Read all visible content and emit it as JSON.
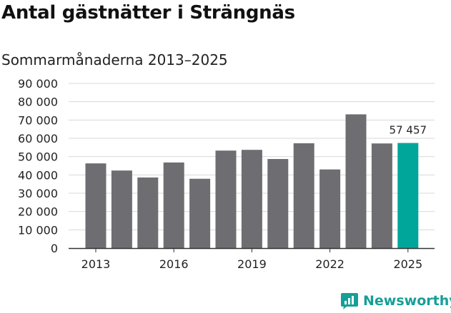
{
  "title": "Antal gästnätter i Strängnäs",
  "subtitle": "Sommarmånaderna 2013–2025",
  "brand": "Newsworthy",
  "colors": {
    "bar": "#6e6d72",
    "highlight": "#00a69a",
    "grid": "#d8d8d8",
    "text": "#222222",
    "brand": "#159f97"
  },
  "chart_data": {
    "type": "bar",
    "categories": [
      "2013",
      "2014",
      "2015",
      "2016",
      "2017",
      "2018",
      "2019",
      "2020",
      "2021",
      "2022",
      "2023",
      "2024",
      "2025"
    ],
    "values": [
      46300,
      42400,
      38600,
      46800,
      37900,
      53300,
      53700,
      48700,
      57300,
      43000,
      73100,
      57200,
      57457
    ],
    "x_tick_labels": [
      "2013",
      "2016",
      "2019",
      "2022",
      "2025"
    ],
    "y_tick_labels": [
      "0",
      "10 000",
      "20 000",
      "30 000",
      "40 000",
      "50 000",
      "60 000",
      "70 000",
      "80 000",
      "90 000"
    ],
    "ylim": [
      0,
      90000
    ],
    "grid": true,
    "highlight_index": 12,
    "data_label": "57 457"
  }
}
